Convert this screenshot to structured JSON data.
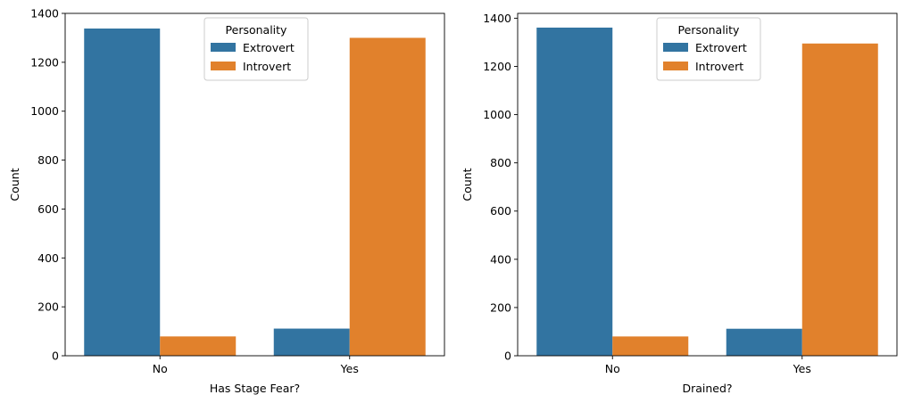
{
  "chart_data": [
    {
      "type": "bar",
      "categories": [
        "No",
        "Yes"
      ],
      "series": [
        {
          "name": "Extrovert",
          "values": [
            1338,
            111
          ]
        },
        {
          "name": "Introvert",
          "values": [
            79,
            1300
          ]
        }
      ],
      "title": "",
      "xlabel": "Has Stage Fear?",
      "ylabel": "Count",
      "ylim": [
        0,
        1400
      ],
      "yticks": [
        0,
        200,
        400,
        600,
        800,
        1000,
        1200,
        1400
      ],
      "legend": {
        "title": "Personality",
        "position": "top-center"
      },
      "grid": false
    },
    {
      "type": "bar",
      "categories": [
        "No",
        "Yes"
      ],
      "series": [
        {
          "name": "Extrovert",
          "values": [
            1361,
            112
          ]
        },
        {
          "name": "Introvert",
          "values": [
            80,
            1295
          ]
        }
      ],
      "title": "",
      "xlabel": "Drained?",
      "ylabel": "Count",
      "ylim": [
        0,
        1420
      ],
      "yticks": [
        0,
        200,
        400,
        600,
        800,
        1000,
        1200,
        1400
      ],
      "legend": {
        "title": "Personality",
        "position": "top-center"
      },
      "grid": false
    }
  ],
  "colors": {
    "Extrovert": "#3274a1",
    "Introvert": "#e1812c"
  }
}
